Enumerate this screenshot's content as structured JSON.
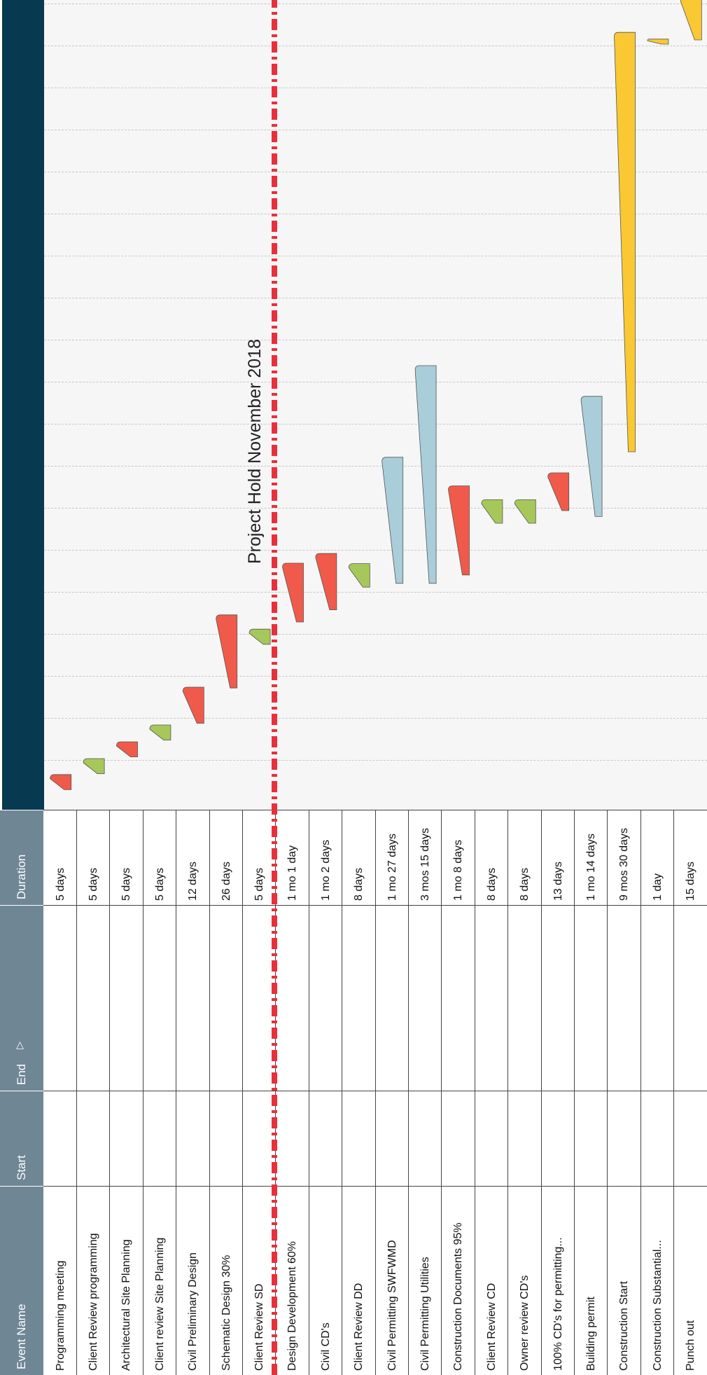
{
  "table": {
    "headers": {
      "event_name": "Event Name",
      "start": "Start",
      "end": "End",
      "duration": "Duration"
    },
    "end_sort_icon": "sort-triangle-icon",
    "rows": [
      {
        "name": "Programming meeting",
        "duration": "5 days"
      },
      {
        "name": "Client Review programming",
        "duration": "5 days"
      },
      {
        "name": "Architectural Site Planning",
        "duration": "5 days"
      },
      {
        "name": "Client review Site Planning",
        "duration": "5 days"
      },
      {
        "name": "Civil Preliminary Design",
        "duration": "12 days"
      },
      {
        "name": "Schematic Design 30%",
        "duration": "26 days"
      },
      {
        "name": "Client Review SD",
        "duration": "5 days"
      },
      {
        "name": "Design Development 60%",
        "duration": "1 mo 1 day"
      },
      {
        "name": "Civil CD's",
        "duration": "1 mo 2 days"
      },
      {
        "name": "Client Review DD",
        "duration": "8 days"
      },
      {
        "name": "Civil Permitting SWFWMD",
        "duration": "1 mo 27 days"
      },
      {
        "name": "Civil Permitting Utilities",
        "duration": "3 mos 15 days"
      },
      {
        "name": "Construction Documents 95%",
        "duration": "1 mo 8 days"
      },
      {
        "name": "Client Review CD",
        "duration": "8 days"
      },
      {
        "name": "Owner review  CD's",
        "duration": "8 days"
      },
      {
        "name": "100% CD's for permitting...",
        "duration": "13 days"
      },
      {
        "name": "Building permit",
        "duration": "1 mo 14 days"
      },
      {
        "name": "Construction Start",
        "duration": "9 mos 30 days"
      },
      {
        "name": "Construction Substantial...",
        "duration": "1 day"
      },
      {
        "name": "Punch out",
        "duration": "15 days"
      }
    ]
  },
  "chart": {
    "annotation": "Project Hold November 2018",
    "colors": {
      "header": "#073a50",
      "background": "#f6f6f6",
      "hold_line": "#e8303a",
      "red": "#f05a4a",
      "green": "#a6c85a",
      "blue": "#a9cdd9",
      "yellow": "#f9c832"
    },
    "bars": [
      {
        "start": 0.06,
        "dur": 0.36,
        "color": "red"
      },
      {
        "start": 0.44,
        "dur": 0.36,
        "color": "green"
      },
      {
        "start": 0.84,
        "dur": 0.36,
        "color": "red"
      },
      {
        "start": 1.24,
        "dur": 0.36,
        "color": "green"
      },
      {
        "start": 1.64,
        "dur": 0.86,
        "color": "red"
      },
      {
        "start": 2.48,
        "dur": 1.74,
        "color": "red"
      },
      {
        "start": 3.52,
        "dur": 0.36,
        "color": "green"
      },
      {
        "start": 4.05,
        "dur": 1.4,
        "color": "red"
      },
      {
        "start": 4.34,
        "dur": 1.34,
        "color": "red"
      },
      {
        "start": 4.88,
        "dur": 0.56,
        "color": "green"
      },
      {
        "start": 4.97,
        "dur": 3.0,
        "color": "blue"
      },
      {
        "start": 4.97,
        "dur": 5.18,
        "color": "blue"
      },
      {
        "start": 5.17,
        "dur": 2.12,
        "color": "red"
      },
      {
        "start": 6.4,
        "dur": 0.56,
        "color": "green"
      },
      {
        "start": 6.4,
        "dur": 0.56,
        "color": "green"
      },
      {
        "start": 6.7,
        "dur": 0.9,
        "color": "red"
      },
      {
        "start": 6.56,
        "dur": 2.86,
        "color": "blue"
      },
      {
        "start": 8.1,
        "dur": 9.98,
        "color": "yellow"
      },
      {
        "start": 17.8,
        "dur": 0.12,
        "color": "yellow"
      },
      {
        "start": 17.9,
        "dur": 1.02,
        "color": "yellow"
      }
    ],
    "gridline_count": 19
  }
}
